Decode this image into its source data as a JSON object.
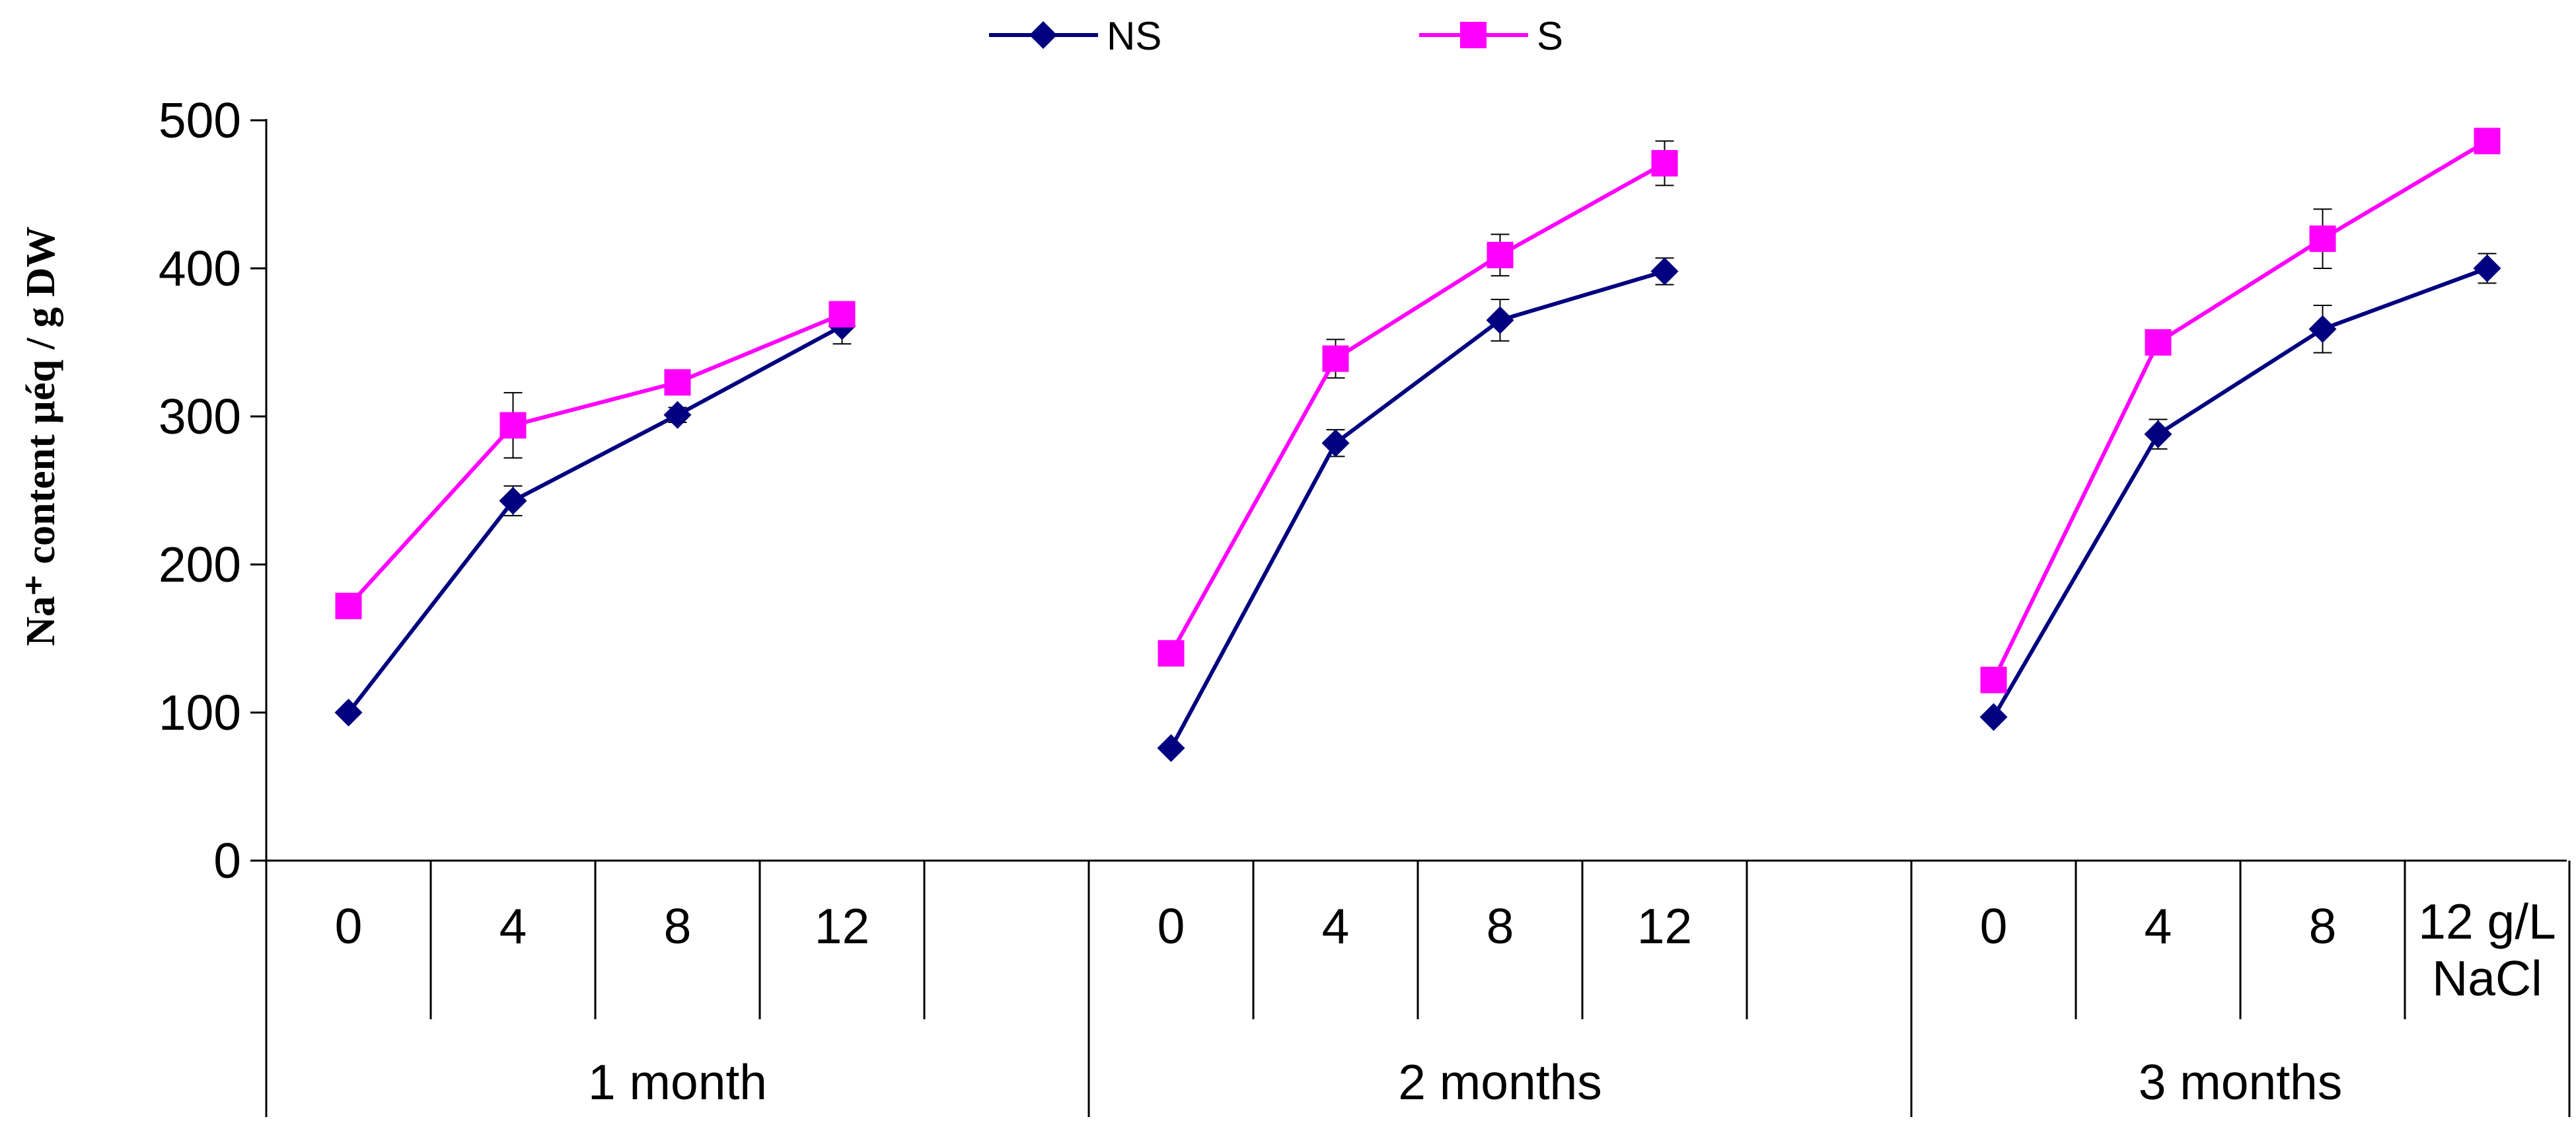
{
  "chart_data": {
    "type": "line",
    "title": "",
    "ylabel": "Na⁺ content µéq / g DW",
    "xlabel": "",
    "ylim": [
      0,
      500
    ],
    "yticks": [
      0,
      100,
      200,
      300,
      400,
      500
    ],
    "groups": [
      {
        "label": "1 month",
        "categories": [
          "0",
          "4",
          "8",
          "12",
          ""
        ]
      },
      {
        "label": "2 months",
        "categories": [
          "0",
          "4",
          "8",
          "12",
          ""
        ]
      },
      {
        "label": "3 months",
        "categories": [
          "0",
          "4",
          "8",
          "12 g/L\nNaCl"
        ]
      }
    ],
    "series": [
      {
        "name": "NS",
        "color": "#000080",
        "marker": "diamond",
        "segments": [
          {
            "group": 0,
            "values": [
              100,
              243,
              301,
              361
            ],
            "errors": [
              0,
              10,
              5,
              12
            ]
          },
          {
            "group": 1,
            "values": [
              76,
              282,
              365,
              398
            ],
            "errors": [
              0,
              9,
              14,
              9
            ]
          },
          {
            "group": 2,
            "values": [
              97,
              288,
              359,
              400
            ],
            "errors": [
              0,
              10,
              16,
              10
            ]
          }
        ]
      },
      {
        "name": "S",
        "color": "#FF00FF",
        "marker": "square",
        "segments": [
          {
            "group": 0,
            "values": [
              172,
              294,
              323,
              369
            ],
            "errors": [
              0,
              22,
              4,
              3
            ]
          },
          {
            "group": 1,
            "values": [
              140,
              339,
              409,
              471
            ],
            "errors": [
              0,
              13,
              14,
              15
            ]
          },
          {
            "group": 2,
            "values": [
              122,
              350,
              420,
              486
            ],
            "errors": [
              0,
              3,
              20,
              4
            ]
          }
        ]
      }
    ],
    "legend_position": "top-center"
  }
}
